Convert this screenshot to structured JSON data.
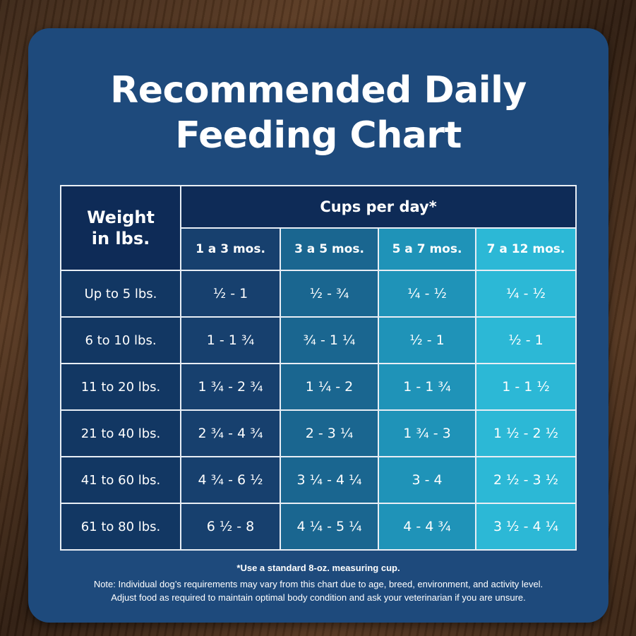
{
  "title_line1": "Recommended Daily",
  "title_line2": "Feeding Chart",
  "table": {
    "weight_header_line1": "Weight",
    "weight_header_line2": "in lbs.",
    "cups_header": "Cups per day*",
    "age_columns": [
      "1 a 3 mos.",
      "3 a 5 mos.",
      "5 a 7 mos.",
      "7 a 12 mos."
    ],
    "rows": [
      {
        "weight": "Up to 5 lbs.",
        "values": [
          "½ - 1",
          "½ - ¾",
          "¼ - ½",
          "¼ - ½"
        ]
      },
      {
        "weight": "6 to 10 lbs.",
        "values": [
          "1 - 1 ¾",
          "¾ - 1 ¼",
          "½ - 1",
          "½ - 1"
        ]
      },
      {
        "weight": "11 to 20 lbs.",
        "values": [
          "1 ¾ - 2 ¾",
          "1 ¼ - 2",
          "1 - 1 ¾",
          "1 - 1 ½"
        ]
      },
      {
        "weight": "21 to 40 lbs.",
        "values": [
          "2 ¾ - 4 ¾",
          "2 - 3 ¼",
          "1 ¾ - 3",
          "1 ½ - 2 ½"
        ]
      },
      {
        "weight": "41 to 60 lbs.",
        "values": [
          "4 ¾ - 6 ½",
          "3 ¼ - 4 ¼",
          "3 - 4",
          "2 ½ - 3 ½"
        ]
      },
      {
        "weight": "61 to 80 lbs.",
        "values": [
          "6 ½ - 8",
          "4 ¼ - 5 ¼",
          "4 - 4 ¾",
          "3 ½ - 4 ¼"
        ]
      }
    ]
  },
  "footnotes": {
    "measuring_cup": "*Use a standard 8-oz. measuring cup.",
    "note_line1": "Note: Individual dog’s requirements may vary from this chart due to age, breed, environment, and activity level.",
    "note_line2": "Adjust food as required to maintain optimal body condition and ask your veterinarian if you are unsure."
  },
  "colors": {
    "card_background": "#1e4a7c",
    "header_dark": "#0e2b57",
    "column_1": "#17406e",
    "column_2": "#1a6690",
    "column_3": "#1f93b8",
    "column_4": "#2cb8d6"
  }
}
